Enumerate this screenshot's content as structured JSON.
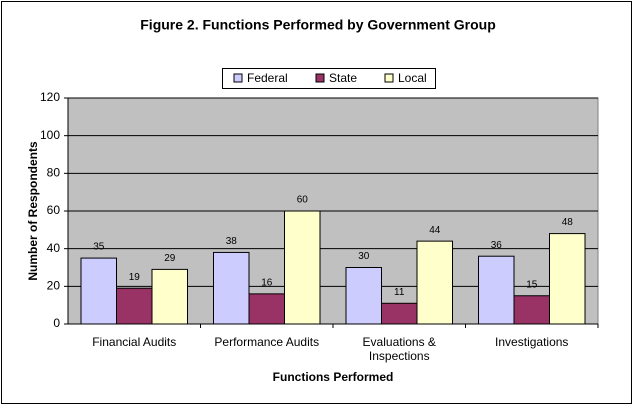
{
  "chart_data": {
    "type": "bar",
    "title": "Figure 2.  Functions Performed by  Government Group",
    "categories": [
      "Financial Audits",
      "Performance Audits",
      "Evaluations & Inspections",
      "Investigations"
    ],
    "series": [
      {
        "name": "Federal",
        "color": "#ccccff",
        "values": [
          35,
          38,
          30,
          36
        ]
      },
      {
        "name": "State",
        "color": "#993366",
        "values": [
          19,
          16,
          11,
          15
        ]
      },
      {
        "name": "Local",
        "color": "#ffffcc",
        "values": [
          29,
          60,
          44,
          48
        ]
      }
    ],
    "ylim": [
      0,
      120
    ],
    "yticks": [
      0,
      20,
      40,
      60,
      80,
      100,
      120
    ],
    "y_label": "Number of Respondents",
    "x_label": "Functions Performed",
    "grid": true,
    "legend": "top"
  }
}
